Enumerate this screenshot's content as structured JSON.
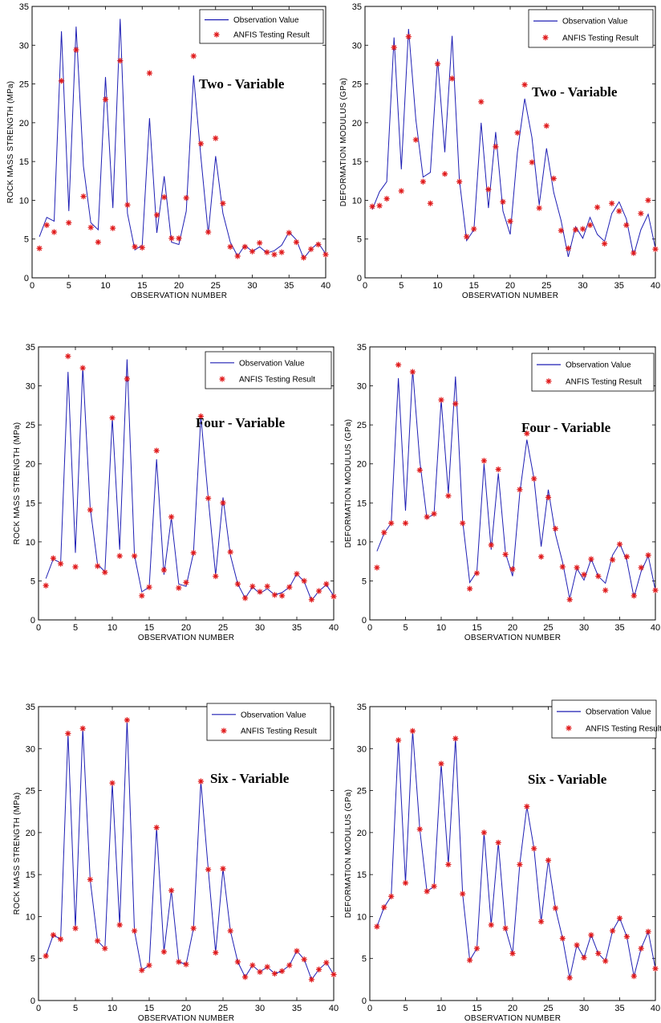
{
  "colors": {
    "observation": "#1f1fb4",
    "anfis": "#e0191a"
  },
  "legend_labels": {
    "observation": "Observation Value",
    "anfis": "ANFIS Testing Result"
  },
  "chart_data": [
    {
      "type": "line",
      "panel": "rock-two",
      "ylabel": "ROCK MASS STRENGTH  (MPa)",
      "xlabel": "OBSERVATION NUMBER",
      "annotation": "Two - Variable",
      "xlim": [
        0,
        40
      ],
      "ylim": [
        0,
        35
      ],
      "xticks": [
        0,
        5,
        10,
        15,
        20,
        25,
        30,
        35,
        40
      ],
      "yticks": [
        0,
        5,
        10,
        15,
        20,
        25,
        30,
        35
      ],
      "legend": "top-right",
      "grid": false,
      "x": [
        1,
        2,
        3,
        4,
        5,
        6,
        7,
        8,
        9,
        10,
        11,
        12,
        13,
        14,
        15,
        16,
        17,
        18,
        19,
        20,
        21,
        22,
        23,
        24,
        25,
        26,
        27,
        28,
        29,
        30,
        31,
        32,
        33,
        34,
        35,
        36,
        37,
        38,
        39,
        40
      ],
      "series": [
        {
          "name": "Observation Value",
          "style": "line",
          "values": [
            5.3,
            7.8,
            7.3,
            31.8,
            8.6,
            32.4,
            14.4,
            7.1,
            6.2,
            25.9,
            9.0,
            33.4,
            8.3,
            3.6,
            4.2,
            20.6,
            5.8,
            13.1,
            4.6,
            4.3,
            8.6,
            26.1,
            15.6,
            5.7,
            15.7,
            8.3,
            4.6,
            2.8,
            4.2,
            3.4,
            4.0,
            3.2,
            3.5,
            4.2,
            5.9,
            4.9,
            2.5,
            3.7,
            4.5,
            3.1
          ]
        },
        {
          "name": "ANFIS Testing Result",
          "style": "marker",
          "values": [
            3.8,
            6.8,
            5.9,
            25.4,
            7.1,
            29.4,
            10.5,
            6.5,
            4.6,
            23.0,
            6.4,
            28.0,
            9.4,
            4.0,
            3.9,
            26.4,
            8.1,
            10.4,
            5.1,
            5.1,
            10.3,
            28.6,
            17.3,
            5.9,
            18.0,
            9.6,
            4.0,
            2.8,
            4.0,
            3.4,
            4.5,
            3.3,
            3.0,
            3.3,
            5.8,
            4.6,
            2.6,
            3.7,
            4.3,
            3.0
          ]
        }
      ]
    },
    {
      "type": "line",
      "panel": "deformation-two",
      "ylabel": "DEFORMATION MODULUS (GPa)",
      "xlabel": "OBSERVATION NUMBER",
      "annotation": "Two - Variable",
      "xlim": [
        0,
        40
      ],
      "ylim": [
        0,
        35
      ],
      "xticks": [
        0,
        5,
        10,
        15,
        20,
        25,
        30,
        35,
        40
      ],
      "yticks": [
        0,
        5,
        10,
        15,
        20,
        25,
        30,
        35
      ],
      "legend": "top-right",
      "grid": false,
      "x": [
        1,
        2,
        3,
        4,
        5,
        6,
        7,
        8,
        9,
        10,
        11,
        12,
        13,
        14,
        15,
        16,
        17,
        18,
        19,
        20,
        21,
        22,
        23,
        24,
        25,
        26,
        27,
        28,
        29,
        30,
        31,
        32,
        33,
        34,
        35,
        36,
        37,
        38,
        39,
        40
      ],
      "series": [
        {
          "name": "Observation Value",
          "style": "line",
          "values": [
            8.8,
            11.1,
            12.4,
            31.0,
            14.0,
            32.1,
            20.4,
            13.0,
            13.6,
            28.2,
            16.2,
            31.2,
            12.7,
            4.8,
            6.2,
            20.0,
            9.0,
            18.8,
            8.6,
            5.6,
            16.2,
            23.1,
            18.1,
            9.4,
            16.7,
            11.0,
            7.4,
            2.7,
            6.6,
            5.1,
            7.8,
            5.6,
            4.7,
            8.3,
            9.8,
            7.6,
            2.9,
            6.2,
            8.2,
            3.8
          ]
        },
        {
          "name": "ANFIS Testing Result",
          "style": "marker",
          "values": [
            9.2,
            9.3,
            10.2,
            29.7,
            11.2,
            31.1,
            17.8,
            12.4,
            9.6,
            27.6,
            13.4,
            25.7,
            12.4,
            5.3,
            6.3,
            22.7,
            11.4,
            16.9,
            9.8,
            7.3,
            18.7,
            24.9,
            14.9,
            9.0,
            19.6,
            12.8,
            6.1,
            3.8,
            6.2,
            6.3,
            6.8,
            9.1,
            4.4,
            9.6,
            8.6,
            6.8,
            3.2,
            8.3,
            10.0,
            3.7
          ]
        }
      ]
    },
    {
      "type": "line",
      "panel": "rock-four",
      "ylabel": "ROCK MASS STRENGTH  (MPa)",
      "xlabel": "OBSERVATION NUMBER",
      "annotation": "Four - Variable",
      "xlim": [
        0,
        40
      ],
      "ylim": [
        0,
        35
      ],
      "xticks": [
        0,
        5,
        10,
        15,
        20,
        25,
        30,
        35,
        40
      ],
      "yticks": [
        0,
        5,
        10,
        15,
        20,
        25,
        30,
        35
      ],
      "legend": "top-right",
      "grid": false,
      "x": [
        1,
        2,
        3,
        4,
        5,
        6,
        7,
        8,
        9,
        10,
        11,
        12,
        13,
        14,
        15,
        16,
        17,
        18,
        19,
        20,
        21,
        22,
        23,
        24,
        25,
        26,
        27,
        28,
        29,
        30,
        31,
        32,
        33,
        34,
        35,
        36,
        37,
        38,
        39,
        40
      ],
      "series": [
        {
          "name": "Observation Value",
          "style": "line",
          "values": [
            5.3,
            7.8,
            7.3,
            31.8,
            8.6,
            32.4,
            14.4,
            7.1,
            6.2,
            25.9,
            9.0,
            33.4,
            8.3,
            3.6,
            4.2,
            20.6,
            5.8,
            13.1,
            4.6,
            4.3,
            8.6,
            26.1,
            15.6,
            5.7,
            15.7,
            8.3,
            4.6,
            2.8,
            4.2,
            3.4,
            4.0,
            3.2,
            3.5,
            4.2,
            5.9,
            4.9,
            2.5,
            3.7,
            4.5,
            3.1
          ]
        },
        {
          "name": "ANFIS Testing Result",
          "style": "marker",
          "values": [
            4.4,
            7.9,
            7.2,
            33.8,
            6.8,
            32.3,
            14.1,
            6.9,
            6.1,
            25.9,
            8.2,
            30.9,
            8.2,
            3.1,
            4.2,
            21.7,
            6.4,
            13.2,
            4.1,
            4.8,
            8.6,
            26.1,
            15.6,
            5.6,
            15.0,
            8.7,
            4.6,
            2.8,
            4.3,
            3.6,
            4.3,
            3.2,
            3.1,
            4.2,
            5.9,
            5.0,
            2.6,
            3.7,
            4.6,
            3.0
          ]
        }
      ]
    },
    {
      "type": "line",
      "panel": "deformation-four",
      "ylabel": "DEFORMATION MODULUS (GPa)",
      "xlabel": "OBSERVATION NUMBER",
      "annotation": "Four - Variable",
      "xlim": [
        0,
        40
      ],
      "ylim": [
        0,
        35
      ],
      "xticks": [
        0,
        5,
        10,
        15,
        20,
        25,
        30,
        35,
        40
      ],
      "yticks": [
        0,
        5,
        10,
        15,
        20,
        25,
        30,
        35
      ],
      "legend": "top-right",
      "grid": false,
      "x": [
        1,
        2,
        3,
        4,
        5,
        6,
        7,
        8,
        9,
        10,
        11,
        12,
        13,
        14,
        15,
        16,
        17,
        18,
        19,
        20,
        21,
        22,
        23,
        24,
        25,
        26,
        27,
        28,
        29,
        30,
        31,
        32,
        33,
        34,
        35,
        36,
        37,
        38,
        39,
        40
      ],
      "series": [
        {
          "name": "Observation Value",
          "style": "line",
          "values": [
            8.8,
            11.1,
            12.4,
            31.0,
            14.0,
            32.1,
            20.4,
            13.0,
            13.6,
            28.2,
            16.2,
            31.2,
            12.7,
            4.8,
            6.2,
            20.0,
            9.0,
            18.8,
            8.6,
            5.6,
            16.2,
            23.1,
            18.1,
            9.4,
            16.7,
            11.0,
            7.4,
            2.7,
            6.6,
            5.1,
            7.8,
            5.6,
            4.7,
            8.3,
            9.8,
            7.6,
            2.9,
            6.2,
            8.2,
            3.8
          ]
        },
        {
          "name": "ANFIS Testing Result",
          "style": "marker",
          "values": [
            6.7,
            11.2,
            12.4,
            32.7,
            12.4,
            31.8,
            19.2,
            13.2,
            13.6,
            28.2,
            15.9,
            27.7,
            12.4,
            4.0,
            6.0,
            20.4,
            9.6,
            19.3,
            8.4,
            6.5,
            16.7,
            23.9,
            18.1,
            8.1,
            15.7,
            11.7,
            6.8,
            2.6,
            6.7,
            5.8,
            7.8,
            5.6,
            3.8,
            7.7,
            9.7,
            8.1,
            3.1,
            6.7,
            8.3,
            3.8
          ]
        }
      ]
    },
    {
      "type": "line",
      "panel": "rock-six",
      "ylabel": "ROCK MASS STRENGTH  (MPa)",
      "xlabel": "OBSERVATION NUMBER",
      "annotation": "Six - Variable",
      "xlim": [
        0,
        40
      ],
      "ylim": [
        0,
        35
      ],
      "xticks": [
        0,
        5,
        10,
        15,
        20,
        25,
        30,
        35,
        40
      ],
      "yticks": [
        0,
        5,
        10,
        15,
        20,
        25,
        30,
        35
      ],
      "legend": "top-right",
      "grid": false,
      "x": [
        1,
        2,
        3,
        4,
        5,
        6,
        7,
        8,
        9,
        10,
        11,
        12,
        13,
        14,
        15,
        16,
        17,
        18,
        19,
        20,
        21,
        22,
        23,
        24,
        25,
        26,
        27,
        28,
        29,
        30,
        31,
        32,
        33,
        34,
        35,
        36,
        37,
        38,
        39,
        40
      ],
      "series": [
        {
          "name": "Observation Value",
          "style": "line",
          "values": [
            5.3,
            7.8,
            7.3,
            31.8,
            8.6,
            32.4,
            14.4,
            7.1,
            6.2,
            25.9,
            9.0,
            33.4,
            8.3,
            3.6,
            4.2,
            20.6,
            5.8,
            13.1,
            4.6,
            4.3,
            8.6,
            26.1,
            15.6,
            5.7,
            15.7,
            8.3,
            4.6,
            2.8,
            4.2,
            3.4,
            4.0,
            3.2,
            3.5,
            4.2,
            5.9,
            4.9,
            2.5,
            3.7,
            4.5,
            3.1
          ]
        },
        {
          "name": "ANFIS Testing Result",
          "style": "marker",
          "values": [
            5.3,
            7.8,
            7.3,
            31.8,
            8.6,
            32.4,
            14.4,
            7.1,
            6.2,
            25.9,
            9.0,
            33.4,
            8.3,
            3.6,
            4.2,
            20.6,
            5.8,
            13.1,
            4.6,
            4.3,
            8.6,
            26.1,
            15.6,
            5.7,
            15.7,
            8.3,
            4.6,
            2.8,
            4.2,
            3.4,
            4.0,
            3.2,
            3.5,
            4.2,
            5.9,
            4.9,
            2.5,
            3.7,
            4.5,
            3.1
          ]
        }
      ]
    },
    {
      "type": "line",
      "panel": "deformation-six",
      "ylabel": "DEFORMATION MODULUS (GPa)",
      "xlabel": "OBSERVATION NUMBER",
      "annotation": "Six - Variable",
      "xlim": [
        0,
        40
      ],
      "ylim": [
        0,
        35
      ],
      "xticks": [
        0,
        5,
        10,
        15,
        20,
        25,
        30,
        35,
        40
      ],
      "yticks": [
        0,
        5,
        10,
        15,
        20,
        25,
        30,
        35
      ],
      "legend": "top-right",
      "grid": false,
      "x": [
        1,
        2,
        3,
        4,
        5,
        6,
        7,
        8,
        9,
        10,
        11,
        12,
        13,
        14,
        15,
        16,
        17,
        18,
        19,
        20,
        21,
        22,
        23,
        24,
        25,
        26,
        27,
        28,
        29,
        30,
        31,
        32,
        33,
        34,
        35,
        36,
        37,
        38,
        39,
        40
      ],
      "series": [
        {
          "name": "Observation Value",
          "style": "line",
          "values": [
            8.8,
            11.1,
            12.4,
            31.0,
            14.0,
            32.1,
            20.4,
            13.0,
            13.6,
            28.2,
            16.2,
            31.2,
            12.7,
            4.8,
            6.2,
            20.0,
            9.0,
            18.8,
            8.6,
            5.6,
            16.2,
            23.1,
            18.1,
            9.4,
            16.7,
            11.0,
            7.4,
            2.7,
            6.6,
            5.1,
            7.8,
            5.6,
            4.7,
            8.3,
            9.8,
            7.6,
            2.9,
            6.2,
            8.2,
            3.8
          ]
        },
        {
          "name": "ANFIS Testing Result",
          "style": "marker",
          "values": [
            8.8,
            11.1,
            12.4,
            31.0,
            14.0,
            32.1,
            20.4,
            13.0,
            13.6,
            28.2,
            16.2,
            31.2,
            12.7,
            4.8,
            6.2,
            20.0,
            9.0,
            18.8,
            8.6,
            5.6,
            16.2,
            23.1,
            18.1,
            9.4,
            16.7,
            11.0,
            7.4,
            2.7,
            6.6,
            5.1,
            7.8,
            5.6,
            4.7,
            8.3,
            9.8,
            7.6,
            2.9,
            6.2,
            8.2,
            3.8
          ]
        }
      ]
    }
  ]
}
